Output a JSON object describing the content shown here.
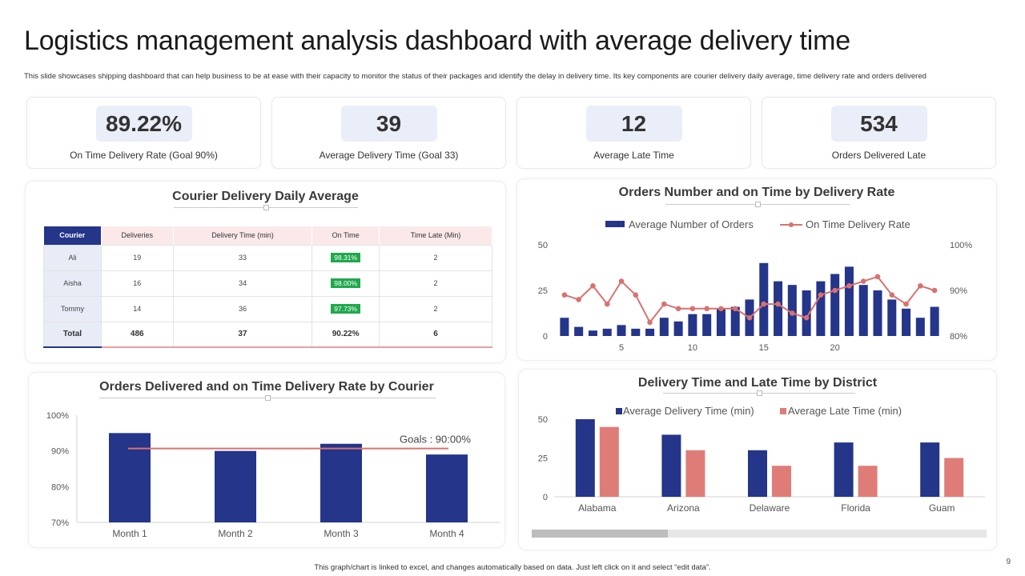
{
  "page": {
    "title": "Logistics management analysis dashboard with average delivery time",
    "subtitle": "This slide showcases shipping dashboard that can help business to be at ease with their capacity to monitor the status of their packages and identify the delay in delivery time. Its key components are courier delivery daily average, time delivery rate and orders delivered",
    "footer": "This graph/chart is linked to excel, and changes automatically based on data. Just left click on it and select “edit data”.",
    "page_number": "9"
  },
  "kpis": [
    {
      "value": "89.22%",
      "label": "On Time Delivery Rate (Goal 90%)"
    },
    {
      "value": "39",
      "label": "Average Delivery Time (Goal 33)"
    },
    {
      "value": "12",
      "label": "Average Late Time"
    },
    {
      "value": "534",
      "label": "Orders Delivered Late"
    }
  ],
  "courier_table": {
    "title": "Courier Delivery Daily Average",
    "headers": [
      "Courier",
      "Deliveries",
      "Delivery Time  (min)",
      "On Time",
      "Time Late (Min)"
    ],
    "rows": [
      [
        "Ali",
        "19",
        "33",
        "98.31%",
        "2"
      ],
      [
        "Aisha",
        "16",
        "34",
        "98.00%",
        "2"
      ],
      [
        "Tommy",
        "14",
        "36",
        "97.73%",
        "2"
      ]
    ],
    "total": [
      "Total",
      "486",
      "37",
      "90.22%",
      "6"
    ]
  },
  "colors": {
    "navy": "#24358a",
    "salmon": "#e07c77",
    "line": "#d9716f"
  },
  "chart_data": [
    {
      "type": "bar+line",
      "title": "Orders Number and on Time by Delivery Rate",
      "legend": [
        "Average Number of Orders",
        "On Time Delivery Rate"
      ],
      "x": [
        1,
        2,
        3,
        4,
        5,
        6,
        7,
        8,
        9,
        10,
        11,
        12,
        13,
        14,
        15,
        16,
        17,
        18,
        19,
        20,
        21,
        22,
        23,
        24,
        25,
        26,
        27
      ],
      "x_ticks": [
        "5",
        "10",
        "15",
        "20"
      ],
      "x_tick_values": [
        5,
        10,
        15,
        20
      ],
      "y_ticks": [
        "0",
        "25",
        "50"
      ],
      "y2_ticks": [
        "80%",
        "90%",
        "100%"
      ],
      "ylim": [
        0,
        50
      ],
      "y2lim": [
        80,
        100
      ],
      "series": [
        {
          "name": "Average Number of Orders",
          "kind": "bar",
          "values": [
            10,
            5,
            3,
            4,
            6,
            4,
            4,
            10,
            8,
            12,
            12,
            15,
            16,
            20,
            40,
            30,
            28,
            25,
            30,
            34,
            38,
            28,
            25,
            20,
            15,
            10,
            16
          ]
        },
        {
          "name": "On Time Delivery Rate",
          "kind": "line",
          "values": [
            89,
            88,
            91,
            87,
            92,
            89,
            83,
            87,
            86,
            86,
            86,
            86,
            86,
            84,
            87,
            87,
            85,
            84,
            89,
            90,
            91,
            92,
            93,
            89,
            87,
            91,
            90
          ]
        }
      ]
    },
    {
      "type": "bar",
      "title": "Orders Delivered and on Time Delivery Rate by Courier",
      "categories": [
        "Month 1",
        "Month 2",
        "Month 3",
        "Month 4"
      ],
      "values": [
        95,
        90,
        92,
        89
      ],
      "y_ticks": [
        "70%",
        "80%",
        "90%",
        "100%"
      ],
      "ylim": [
        70,
        100
      ],
      "goal": 90,
      "goal_label": "Goals : 90:00%"
    },
    {
      "type": "bar",
      "title": "Delivery Time and Late Time by District",
      "categories": [
        "Alabama",
        "Arizona",
        "Delaware",
        "Florida",
        "Guam"
      ],
      "legend": [
        "Average Delivery Time (min)",
        "Average Late Time (min)"
      ],
      "y_ticks": [
        "0",
        "25",
        "50"
      ],
      "ylim": [
        0,
        50
      ],
      "series": [
        {
          "name": "Average Delivery Time (min)",
          "values": [
            50,
            40,
            30,
            35,
            35
          ]
        },
        {
          "name": "Average Late Time (min)",
          "values": [
            45,
            30,
            20,
            20,
            25
          ]
        }
      ]
    }
  ]
}
